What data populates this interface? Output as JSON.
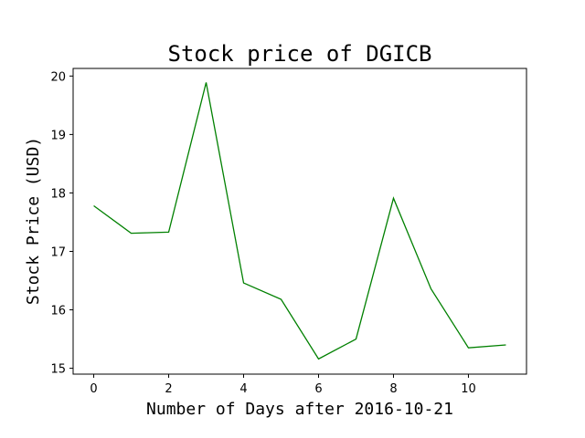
{
  "chart_data": {
    "type": "line",
    "title": "Stock price of DGICB",
    "xlabel": "Number of Days after 2016-10-21",
    "ylabel": "Stock Price (USD)",
    "x": [
      0,
      1,
      2,
      3,
      4,
      5,
      6,
      7,
      8,
      9,
      10,
      11
    ],
    "series": [
      {
        "values": [
          17.78,
          17.31,
          17.33,
          19.89,
          16.46,
          16.18,
          15.16,
          15.5,
          17.91,
          16.36,
          15.35,
          15.4
        ],
        "color": "#008000"
      }
    ],
    "xlim": [
      -0.55,
      11.55
    ],
    "ylim": [
      14.9,
      20.13
    ],
    "xticks": [
      0,
      2,
      4,
      6,
      8,
      10
    ],
    "yticks": [
      15,
      16,
      17,
      18,
      19,
      20
    ],
    "grid": false,
    "legend": "none"
  }
}
